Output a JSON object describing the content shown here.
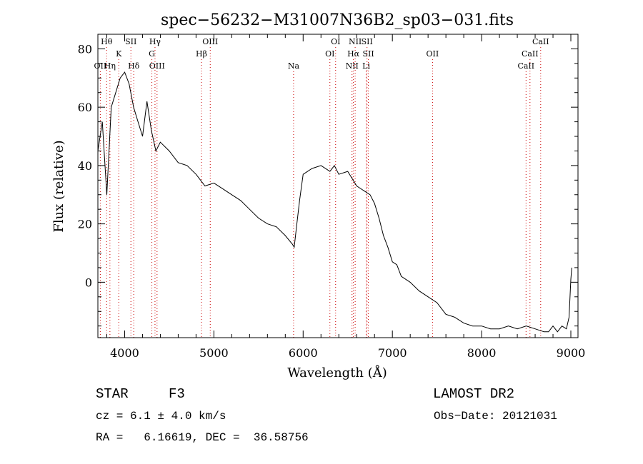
{
  "chart_data": {
    "type": "line",
    "title": "spec−56232−M31007N36B2_sp03−031.fits",
    "xlabel": "Wavelength (Å)",
    "ylabel": "Flux (relative)",
    "xlim": [
      3700,
      9080
    ],
    "ylim": [
      -19,
      85
    ],
    "xticks": [
      4000,
      5000,
      6000,
      7000,
      8000,
      9000
    ],
    "yticks": [
      0,
      20,
      40,
      60,
      80
    ],
    "line_color": "#000000",
    "marker_color": "#cc0000",
    "grid": false,
    "series": [
      {
        "x": [
          3700,
          3750,
          3800,
          3850,
          3900,
          3950,
          4000,
          4050,
          4100,
          4150,
          4200,
          4250,
          4300,
          4350,
          4400,
          4500,
          4600,
          4700,
          4800,
          4900,
          5000,
          5100,
          5200,
          5300,
          5400,
          5500,
          5600,
          5700,
          5800,
          5880,
          5900,
          5930,
          5960,
          6000,
          6100,
          6200,
          6300,
          6350,
          6400,
          6500,
          6560,
          6600,
          6700,
          6750,
          6800,
          6850,
          6900,
          6950,
          7000,
          7050,
          7100,
          7200,
          7300,
          7400,
          7500,
          7600,
          7700,
          7800,
          7900,
          8000,
          8100,
          8200,
          8300,
          8400,
          8500,
          8600,
          8700,
          8750,
          8800,
          8850,
          8900,
          8950,
          8980,
          9000,
          9010
        ],
        "y": [
          45,
          55,
          30,
          60,
          65,
          70,
          72,
          68,
          60,
          55,
          50,
          62,
          52,
          45,
          48,
          45,
          41,
          40,
          37,
          33,
          34,
          32,
          30,
          28,
          25,
          22,
          20,
          19,
          16,
          13,
          12,
          20,
          28,
          37,
          39,
          40,
          38,
          40,
          37,
          38,
          35,
          33,
          31,
          30,
          27,
          22,
          16,
          12,
          7,
          6,
          2,
          0,
          -3,
          -5,
          -7,
          -11,
          -12,
          -14,
          -15,
          -15,
          -16,
          -16,
          -15,
          -16,
          -15,
          -16,
          -17,
          -17,
          -15,
          -17,
          -15,
          -16,
          -12,
          1,
          5
        ]
      }
    ],
    "annotations": [
      {
        "label": "Hθ",
        "x": 3798,
        "row": 1
      },
      {
        "label": "OII",
        "x": 3727,
        "row": 3
      },
      {
        "label": "Hη",
        "x": 3835,
        "row": 3
      },
      {
        "label": "K",
        "x": 3934,
        "row": 2
      },
      {
        "label": "SII",
        "x": 4070,
        "row": 1
      },
      {
        "label": "Hδ",
        "x": 4102,
        "row": 3
      },
      {
        "label": "Hγ",
        "x": 4340,
        "row": 1
      },
      {
        "label": "G",
        "x": 4305,
        "row": 2
      },
      {
        "label": "OIII",
        "x": 4363,
        "row": 3
      },
      {
        "label": "OIII",
        "x": 4959,
        "row": 1
      },
      {
        "label": "Hβ",
        "x": 4861,
        "row": 2
      },
      {
        "label": "Na",
        "x": 5893,
        "row": 3
      },
      {
        "label": "OI",
        "x": 6364,
        "row": 1
      },
      {
        "label": "OI",
        "x": 6300,
        "row": 2
      },
      {
        "label": "NII",
        "x": 6583,
        "row": 1
      },
      {
        "label": "Hα",
        "x": 6563,
        "row": 2
      },
      {
        "label": "NII",
        "x": 6548,
        "row": 3
      },
      {
        "label": "SII",
        "x": 6716,
        "row": 1
      },
      {
        "label": "SII",
        "x": 6731,
        "row": 2
      },
      {
        "label": "Li",
        "x": 6707,
        "row": 3
      },
      {
        "label": "OII",
        "x": 7450,
        "row": 2
      },
      {
        "label": "CaII",
        "x": 8662,
        "row": 1
      },
      {
        "label": "CaII",
        "x": 8542,
        "row": 2
      },
      {
        "label": "CaII",
        "x": 8498,
        "row": 3
      }
    ]
  },
  "info": {
    "object_class": "STAR",
    "subclass": "F3",
    "release": "LAMOST DR2",
    "cz": "cz = 6.1 ± 4.0 km/s",
    "obs_date": "Obs−Date: 20121031",
    "coords": "RA =   6.16619, DEC =  36.58756"
  }
}
